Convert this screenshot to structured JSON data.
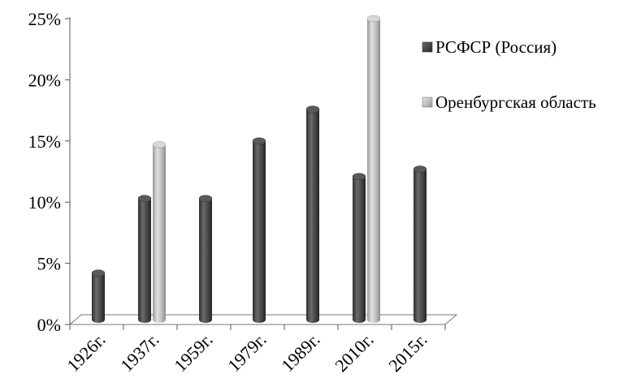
{
  "chart_data": {
    "type": "bar",
    "title": "",
    "xlabel": "",
    "ylabel": "",
    "categories": [
      "1926г.",
      "1937г.",
      "1959г.",
      "1979г.",
      "1989г.",
      "2010г.",
      "2015г."
    ],
    "series": [
      {
        "name": "РСФСР (Россия)",
        "color": "#4a4a4a",
        "values": [
          4.2,
          10.3,
          10.3,
          15.0,
          17.6,
          12.1,
          12.7
        ]
      },
      {
        "name": "Оренбургская область",
        "color": "#bdbdbd",
        "values": [
          null,
          14.7,
          null,
          null,
          null,
          25.0,
          null
        ]
      }
    ],
    "ylim": [
      0,
      25
    ],
    "yticks": [
      0,
      5,
      10,
      15,
      20,
      25
    ],
    "ytick_labels": [
      "0%",
      "5%",
      "10%",
      "15%",
      "20%",
      "25%"
    ],
    "grid": false,
    "legend_position": "right",
    "style": "3d-cylinder"
  }
}
